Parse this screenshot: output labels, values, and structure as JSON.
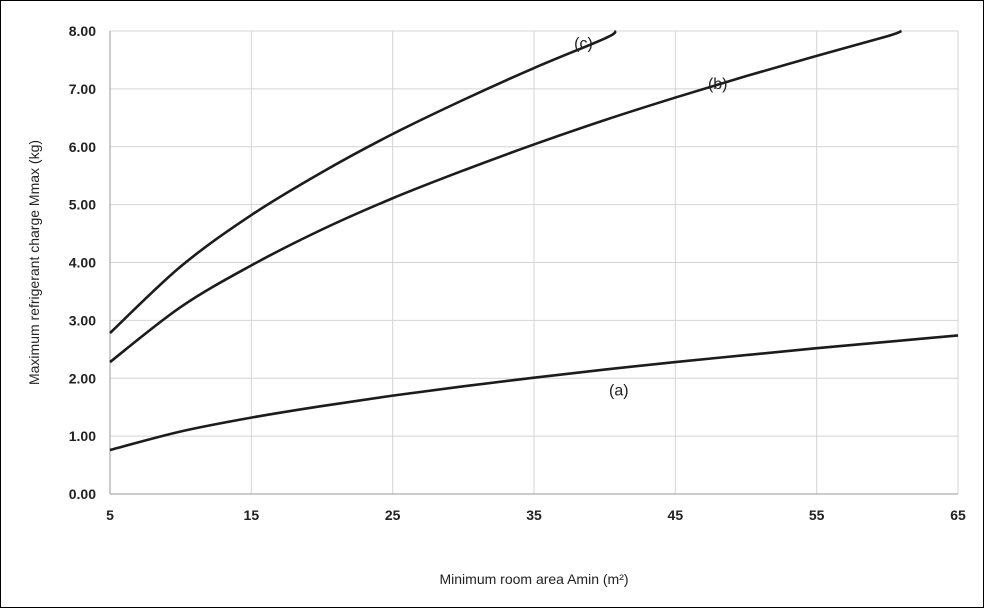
{
  "chart_data": {
    "type": "line",
    "xlabel": "Minimum room area Amin (m²)",
    "ylabel": "Maximum refrigerant charge Mmax (kg)",
    "xlim": [
      5,
      65
    ],
    "ylim": [
      0,
      8
    ],
    "x_ticks": [
      "5",
      "15",
      "25",
      "35",
      "45",
      "55",
      "65"
    ],
    "y_ticks": [
      "0.00",
      "1.00",
      "2.00",
      "3.00",
      "4.00",
      "5.00",
      "6.00",
      "7.00",
      "8.00"
    ],
    "grid": true,
    "series": [
      {
        "name": "(a)",
        "x": [
          5,
          10,
          15,
          20,
          25,
          30,
          35,
          40,
          45,
          50,
          55,
          60,
          65
        ],
        "y": [
          0.76,
          1.08,
          1.32,
          1.52,
          1.7,
          1.86,
          2.01,
          2.15,
          2.28,
          2.4,
          2.52,
          2.63,
          2.74
        ]
      },
      {
        "name": "(b)",
        "x": [
          5,
          10,
          15,
          20,
          25,
          30,
          35,
          40,
          45,
          50,
          55,
          60,
          61
        ],
        "y": [
          2.28,
          3.23,
          3.95,
          4.57,
          5.11,
          5.59,
          6.04,
          6.46,
          6.85,
          7.22,
          7.57,
          7.91,
          8.0
        ]
      },
      {
        "name": "(c)",
        "x": [
          5,
          10,
          15,
          20,
          25,
          30,
          35,
          40,
          40.8
        ],
        "y": [
          2.78,
          3.93,
          4.82,
          5.56,
          6.22,
          6.81,
          7.36,
          7.87,
          8.0
        ]
      }
    ]
  }
}
